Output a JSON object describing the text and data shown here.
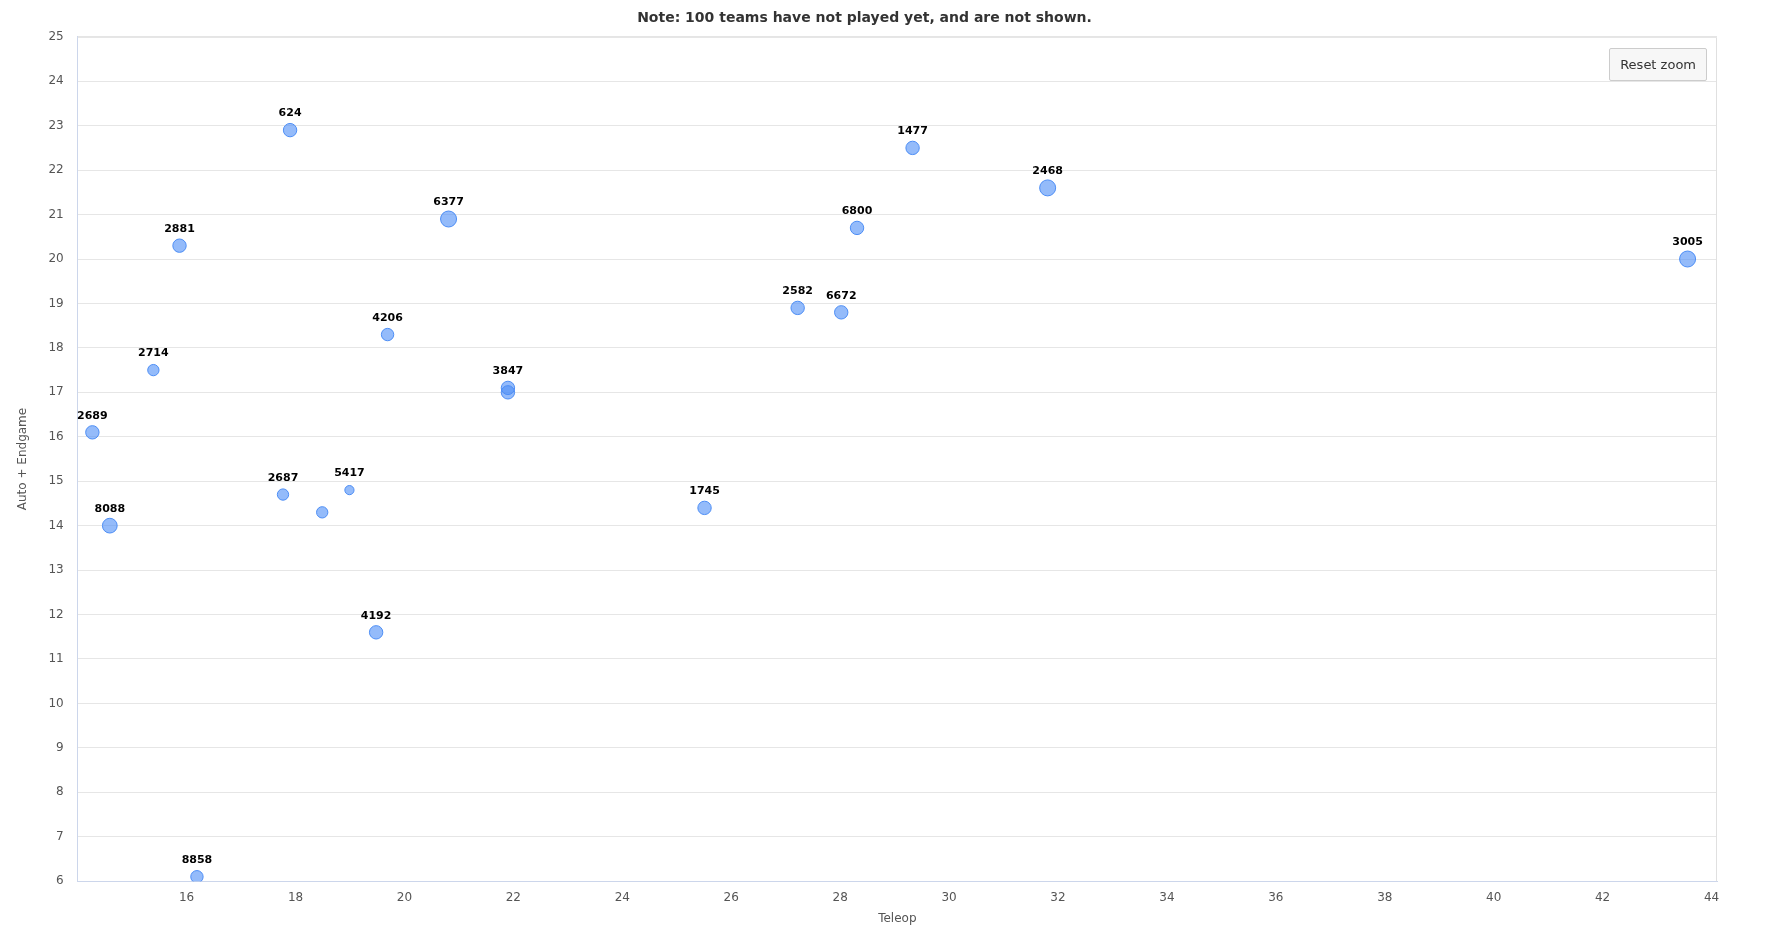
{
  "chart_data": {
    "type": "bubble",
    "title": "Note: 100 teams have not played yet, and are not shown.",
    "xlabel": "Teleop",
    "ylabel": "Auto + Endgame",
    "x": [
      14.27,
      14.59,
      15.39,
      15.87,
      16.19,
      17.9,
      17.77,
      18.49,
      18.99,
      19.48,
      19.69,
      20.81,
      21.9,
      21.9,
      25.51,
      27.22,
      28.02,
      28.31,
      29.33,
      31.81,
      43.56
    ],
    "series": [
      {
        "color": "#4d8ef6",
        "values": [
          16.1,
          14.0,
          17.5,
          20.3,
          6.1,
          22.9,
          14.7,
          14.3,
          14.8,
          11.6,
          18.3,
          20.9,
          17.1,
          17.0,
          14.4,
          18.9,
          18.8,
          20.7,
          22.5,
          21.6,
          20.0
        ],
        "sizes": [
          0.7,
          0.85,
          0.5,
          0.7,
          0.6,
          0.7,
          0.5,
          0.5,
          0.33,
          0.7,
          0.6,
          1,
          0.7,
          0.7,
          0.7,
          0.7,
          0.7,
          0.7,
          0.7,
          1,
          1
        ]
      }
    ],
    "xlim": [
      14,
      44.1
    ],
    "xticks": [
      16,
      18,
      20,
      22,
      24,
      26,
      28,
      30,
      32,
      34,
      36,
      38,
      40,
      42,
      44
    ],
    "ylim": [
      6,
      25
    ],
    "yticks": [
      6,
      7,
      8,
      9,
      10,
      11,
      12,
      13,
      14,
      15,
      16,
      17,
      18,
      19,
      20,
      21,
      22,
      23,
      24,
      25
    ],
    "grid": "y",
    "annotations": [
      "Reset zoom",
      {
        "text": "2689",
        "x": 14.27,
        "y": 16.1
      },
      {
        "text": "8088",
        "x": 14.59,
        "y": 14.0
      },
      {
        "text": "2714",
        "x": 15.39,
        "y": 17.5
      },
      {
        "text": "2881",
        "x": 15.87,
        "y": 20.3
      },
      {
        "text": "8858",
        "x": 16.19,
        "y": 6.1
      },
      {
        "text": "624",
        "x": 17.9,
        "y": 22.9
      },
      {
        "text": "2687",
        "x": 17.77,
        "y": 14.7
      },
      {
        "text": "5417",
        "x": 18.99,
        "y": 14.8
      },
      {
        "text": "4192",
        "x": 19.48,
        "y": 11.6
      },
      {
        "text": "4206",
        "x": 19.69,
        "y": 18.3
      },
      {
        "text": "6377",
        "x": 20.81,
        "y": 20.9
      },
      {
        "text": "3847",
        "x": 21.9,
        "y": 17.1
      },
      {
        "text": "1745",
        "x": 25.51,
        "y": 14.4
      },
      {
        "text": "2582",
        "x": 27.22,
        "y": 18.9
      },
      {
        "text": "6672",
        "x": 28.02,
        "y": 18.8
      },
      {
        "text": "6800",
        "x": 28.31,
        "y": 20.7
      },
      {
        "text": "1477",
        "x": 29.33,
        "y": 22.5
      },
      {
        "text": "2468",
        "x": 31.81,
        "y": 21.6
      },
      {
        "text": "3005",
        "x": 43.56,
        "y": 20.0
      }
    ]
  }
}
